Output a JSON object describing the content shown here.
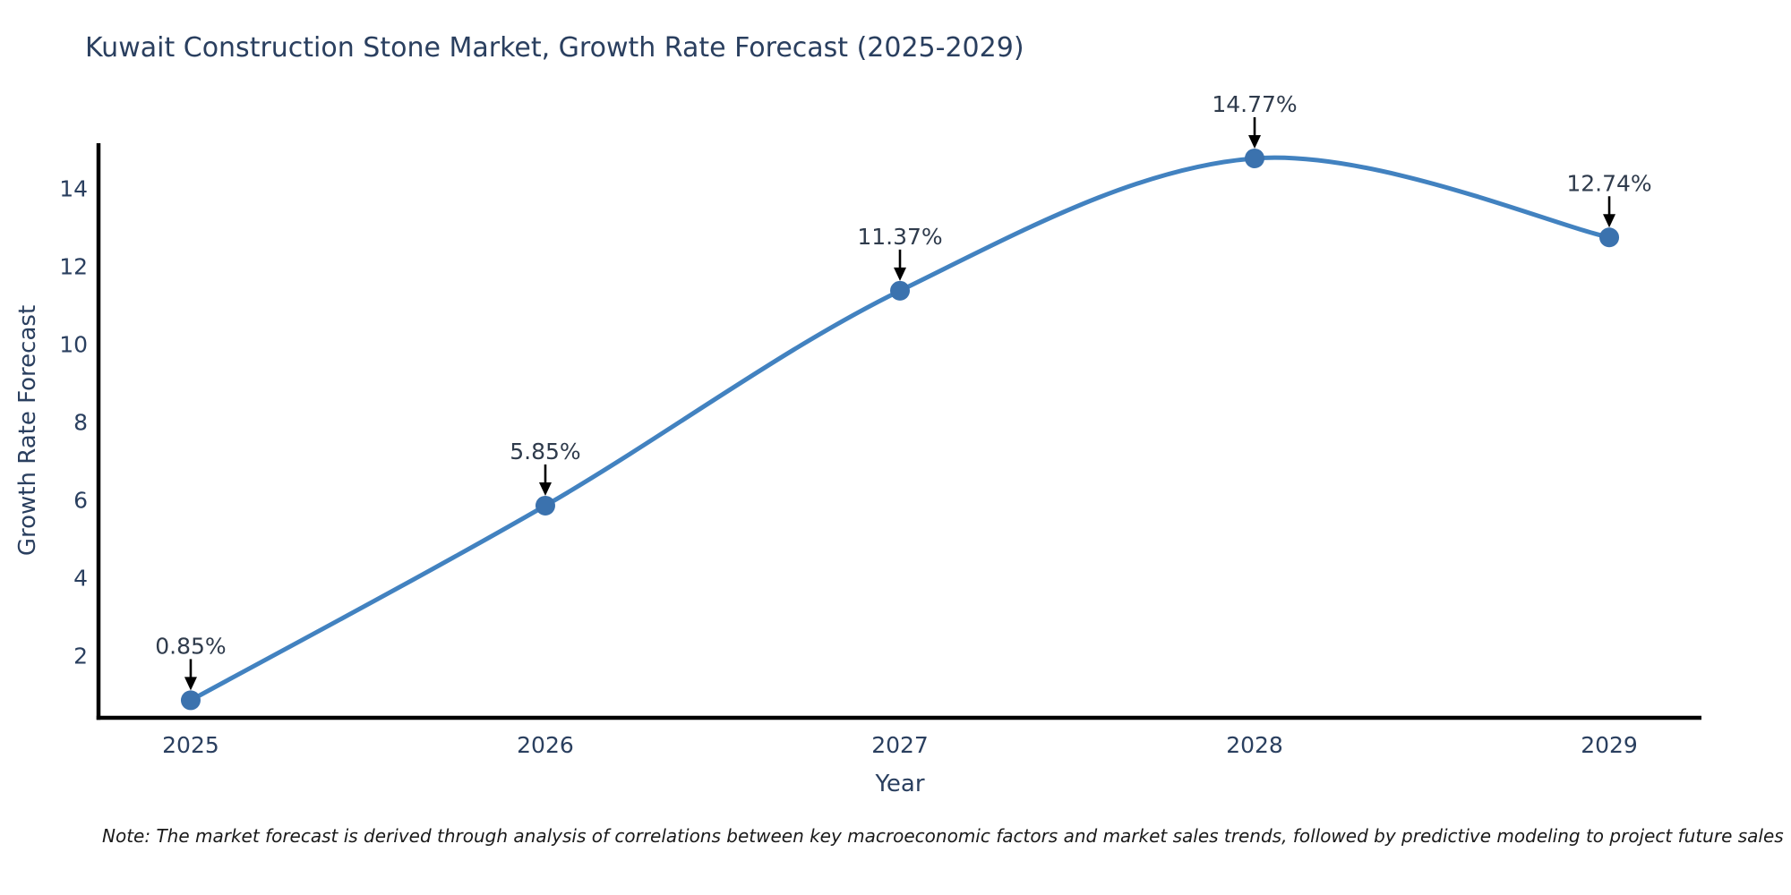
{
  "figure": {
    "title": "Kuwait Construction Stone Market, Growth Rate Forecast (2025-2029)",
    "x_axis_label": "Year",
    "y_axis_label": "Growth Rate Forecast",
    "note": "Note: The market forecast is derived through analysis of correlations between key macroeconomic factors and market sales trends, followed by predictive modeling to project future sales"
  },
  "chart_data": {
    "type": "line",
    "title": "Kuwait Construction Stone Market, Growth Rate Forecast (2025-2029)",
    "xlabel": "Year",
    "ylabel": "Growth Rate Forecast",
    "x": [
      2025,
      2026,
      2027,
      2028,
      2029
    ],
    "values": [
      0.85,
      5.85,
      11.37,
      14.77,
      12.74
    ],
    "point_labels": [
      "0.85%",
      "5.85%",
      "11.37%",
      "14.77%",
      "12.74%"
    ],
    "xticks": [
      2025,
      2026,
      2027,
      2028,
      2029
    ],
    "yticks": [
      2,
      4,
      6,
      8,
      10,
      12,
      14
    ],
    "xlim": [
      2024.74,
      2029.26
    ],
    "ylim": [
      0.4,
      15.16
    ],
    "grid": false,
    "legend": "none",
    "curve": "spline",
    "line_color": "#4282c0",
    "marker_color": "#3b72ae",
    "axis_color": "#000000",
    "tick_label_color": "#2a3f5f",
    "annotation_text_color": "#2f3b4c",
    "annotation_arrow_color": "#000000"
  }
}
